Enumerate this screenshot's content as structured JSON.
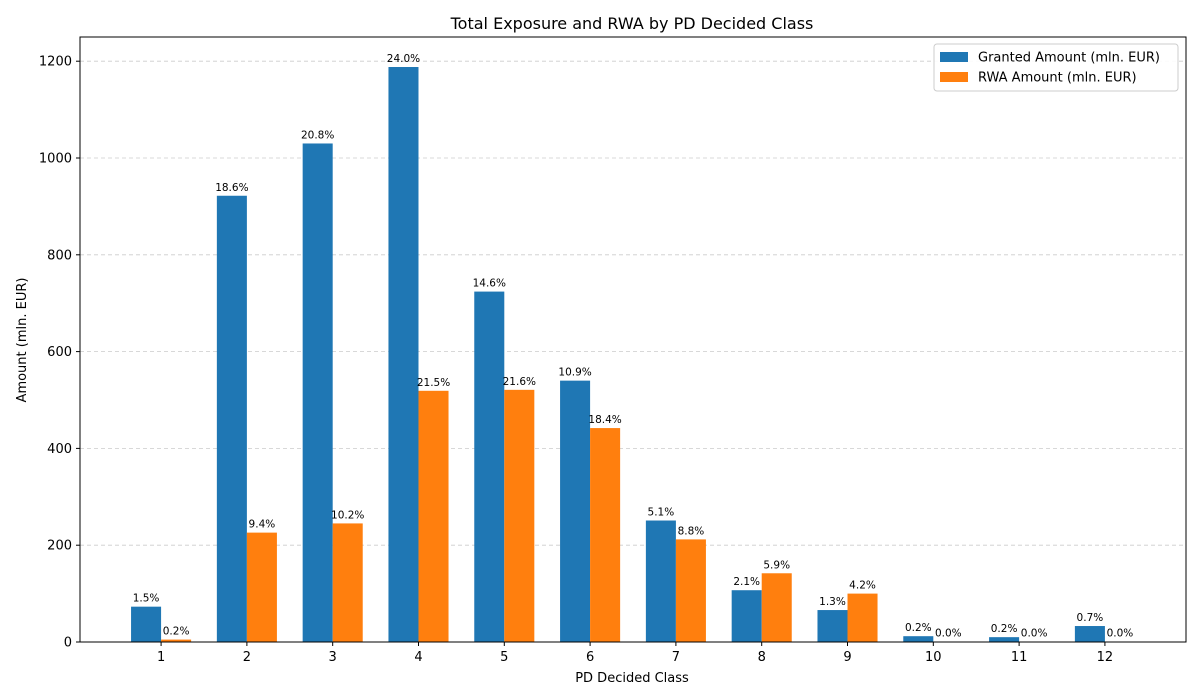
{
  "chart_data": {
    "type": "bar",
    "title": "Total Exposure and RWA by PD Decided Class",
    "xlabel": "PD Decided Class",
    "ylabel": "Amount (mln. EUR)",
    "categories": [
      "1",
      "2",
      "3",
      "4",
      "5",
      "6",
      "7",
      "8",
      "9",
      "10",
      "11",
      "12"
    ],
    "ylim": [
      0,
      1250
    ],
    "yticks": [
      0,
      200,
      400,
      600,
      800,
      1000,
      1200
    ],
    "grid": "y-dashed",
    "legend_position": "top-right",
    "series": [
      {
        "name": "Granted Amount (mln. EUR)",
        "color": "#1f77b4",
        "values": [
          73,
          922,
          1030,
          1188,
          724,
          540,
          251,
          107,
          66,
          12,
          10,
          33
        ],
        "labels": [
          "1.5%",
          "18.6%",
          "20.8%",
          "24.0%",
          "14.6%",
          "10.9%",
          "5.1%",
          "2.1%",
          "1.3%",
          "0.2%",
          "0.2%",
          "0.7%"
        ]
      },
      {
        "name": "RWA Amount (mln. EUR)",
        "color": "#ff7f0e",
        "values": [
          5,
          226,
          245,
          519,
          521,
          442,
          212,
          142,
          100,
          1,
          1,
          1
        ],
        "labels": [
          "0.2%",
          "9.4%",
          "10.2%",
          "21.5%",
          "21.6%",
          "18.4%",
          "8.8%",
          "5.9%",
          "4.2%",
          "0.0%",
          "0.0%",
          "0.0%"
        ]
      }
    ]
  }
}
